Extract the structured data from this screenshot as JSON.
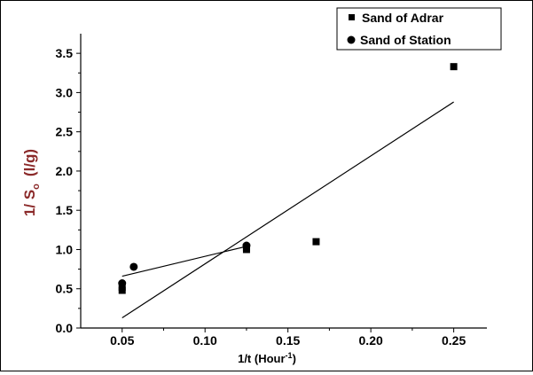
{
  "chart_data": {
    "type": "scatter",
    "xlabel_main": "1/t (Hour",
    "xlabel_sup": "-1",
    "xlabel_close": ")",
    "ylabel_main": "1/ S",
    "ylabel_sub": "o",
    "ylabel_unit": "(l/g)",
    "xlim": [
      0.025,
      0.27
    ],
    "ylim": [
      0.0,
      3.75
    ],
    "xticks": [
      0.05,
      0.1,
      0.15,
      0.2,
      0.25
    ],
    "xtick_labels": [
      "0.05",
      "0.10",
      "0.15",
      "0.20",
      "0.25"
    ],
    "yticks": [
      0.0,
      0.5,
      1.0,
      1.5,
      2.0,
      2.5,
      3.0,
      3.5
    ],
    "ytick_labels": [
      "0.0",
      "0.5",
      "1.0",
      "1.5",
      "2.0",
      "2.5",
      "3.0",
      "3.5"
    ],
    "grid": false,
    "legend_position": "top-right",
    "colors": {
      "axis": "#000000",
      "ylabel": "#8b2a2a",
      "xlabel": "#000000"
    },
    "series": [
      {
        "name": "Sand of Adrar",
        "marker": "square",
        "points": [
          {
            "x": 0.05,
            "y": 0.48
          },
          {
            "x": 0.05,
            "y": 0.52
          },
          {
            "x": 0.125,
            "y": 1.0
          },
          {
            "x": 0.125,
            "y": 1.03
          },
          {
            "x": 0.167,
            "y": 1.1
          },
          {
            "x": 0.25,
            "y": 3.33
          }
        ],
        "fit": {
          "x": [
            0.05,
            0.25
          ],
          "y": [
            0.13,
            2.88
          ]
        }
      },
      {
        "name": "Sand of Station",
        "marker": "circle",
        "points": [
          {
            "x": 0.05,
            "y": 0.57
          },
          {
            "x": 0.057,
            "y": 0.78
          },
          {
            "x": 0.125,
            "y": 1.05
          }
        ],
        "fit": {
          "x": [
            0.05,
            0.125
          ],
          "y": [
            0.66,
            1.04
          ]
        }
      }
    ]
  }
}
